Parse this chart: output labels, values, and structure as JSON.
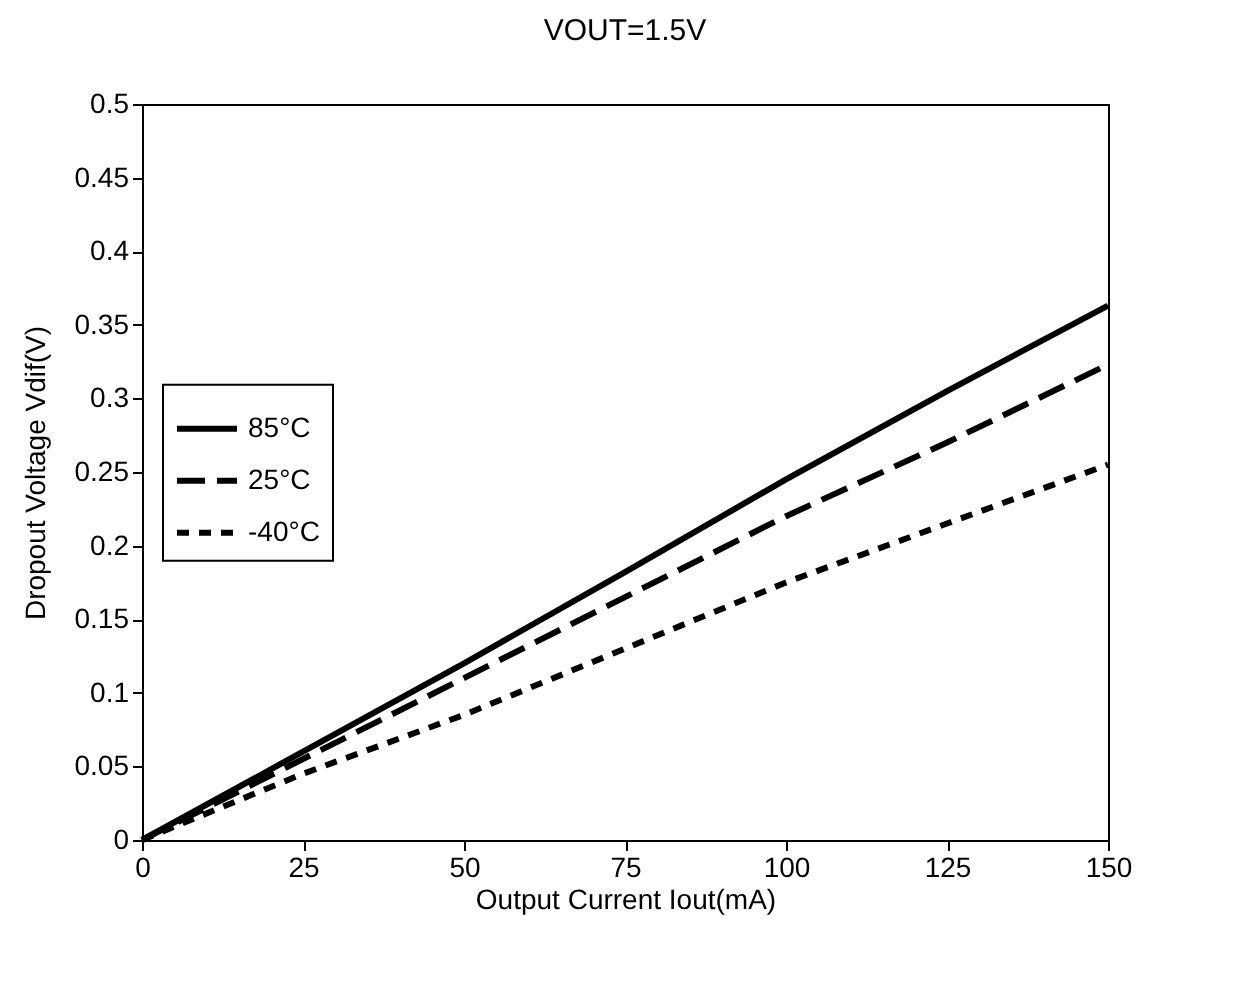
{
  "chart_data": {
    "type": "line",
    "title": "VOUT=1.5V",
    "xlabel": "Output Current Iout(mA)",
    "ylabel": "Dropout Voltage Vdif(V)",
    "x": [
      0,
      25,
      50,
      75,
      100,
      125,
      150
    ],
    "series": [
      {
        "name": "85°C",
        "color": "#000000",
        "line_style": "solid",
        "values": [
          0,
          0.06,
          0.12,
          0.182,
          0.245,
          0.305,
          0.363
        ]
      },
      {
        "name": "25°C",
        "color": "#000000",
        "line_style": "dashed",
        "values": [
          0,
          0.055,
          0.11,
          0.165,
          0.22,
          0.27,
          0.323
        ]
      },
      {
        "name": "-40°C",
        "color": "#000000",
        "line_style": "dotted",
        "values": [
          0,
          0.045,
          0.085,
          0.13,
          0.175,
          0.215,
          0.255
        ]
      }
    ],
    "xlim": [
      0,
      150
    ],
    "xticks": [
      0,
      25,
      50,
      75,
      100,
      125,
      150
    ],
    "ylim": [
      0,
      0.5
    ],
    "yticks": [
      0,
      0.05,
      0.1,
      0.15,
      0.2,
      0.25,
      0.3,
      0.35,
      0.4,
      0.45,
      0.5
    ],
    "grid": false,
    "legend": "left",
    "marker": "none"
  }
}
